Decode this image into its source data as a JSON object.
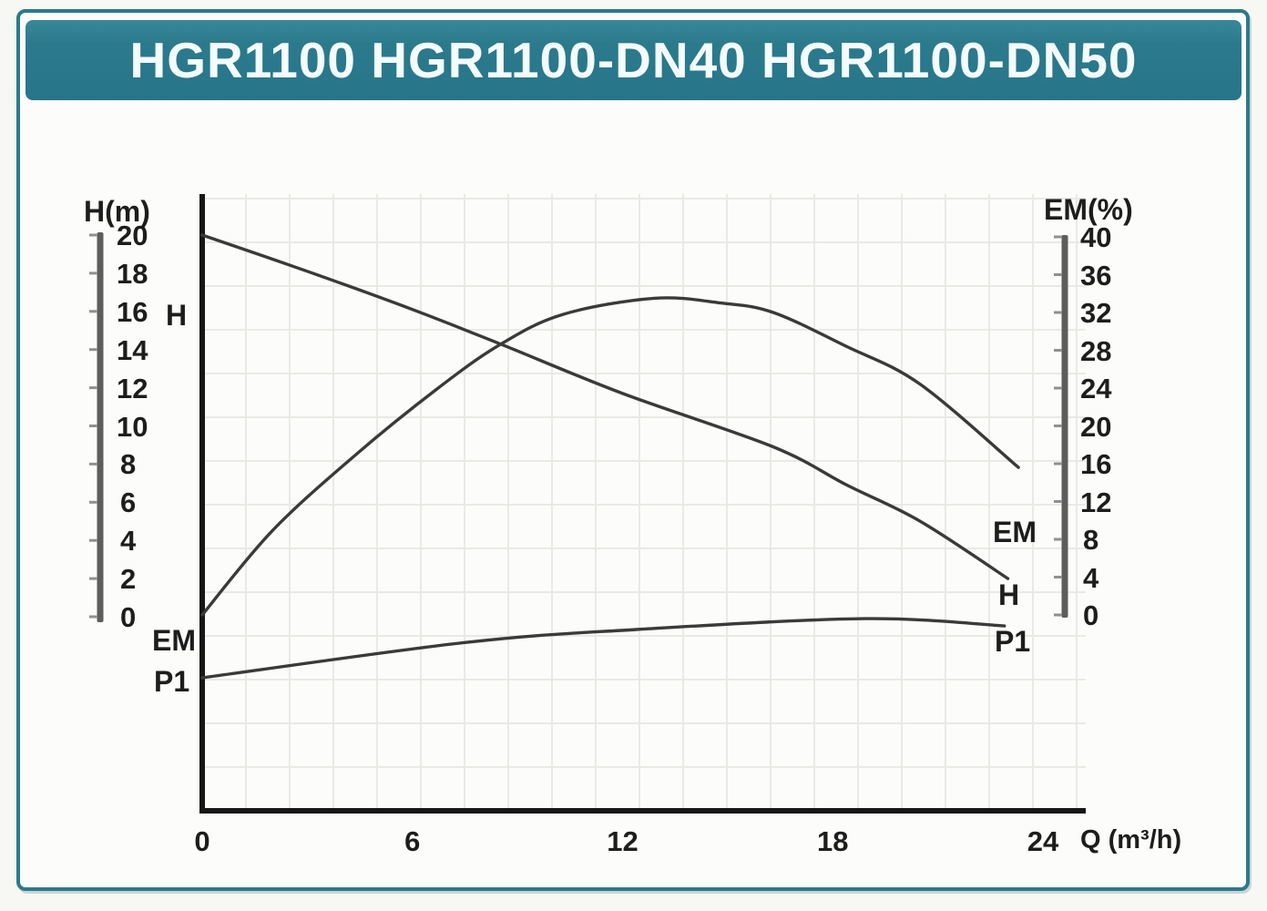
{
  "header": {
    "title": "HGR1100 HGR1100-DN40 HGR1100-DN50"
  },
  "colors": {
    "teal": "#2b7a8c",
    "curve": "#3a3a3a",
    "axis": "#171717",
    "scalebar": "#5d5d5d",
    "scalebar_tick": "#909090",
    "grid": "#e9e9e6",
    "text": "#1d1d1d"
  },
  "left_axis": {
    "title": "H(m)",
    "ticks": [
      20,
      18,
      16,
      14,
      12,
      10,
      8,
      6,
      4,
      2,
      0
    ]
  },
  "right_axis": {
    "title": "EM(%)",
    "ticks": [
      40,
      36,
      32,
      28,
      24,
      20,
      16,
      12,
      8,
      4,
      0
    ]
  },
  "x_axis": {
    "title": "Q (m³/h)",
    "ticks": [
      0,
      6,
      12,
      18,
      24
    ]
  },
  "curve_labels": {
    "left_h": "H",
    "left_em": "EM",
    "left_p1": "P1",
    "right_em": "EM",
    "right_h": "H",
    "right_p1": "P1"
  },
  "chart_data": {
    "type": "line",
    "title": "HGR1100 HGR1100-DN40 HGR1100-DN50",
    "xlabel": "Q (m³/h)",
    "xlim": [
      0,
      24
    ],
    "left_ylabel": "H(m)",
    "left_ylim": [
      0,
      20
    ],
    "right_ylabel": "EM(%)",
    "right_ylim": [
      0,
      40
    ],
    "grid": true,
    "legend_position": "inline-curve-labels",
    "series": [
      {
        "name": "H",
        "axis": "left",
        "points": [
          [
            0,
            20.0
          ],
          [
            3,
            18.1
          ],
          [
            6,
            16.1
          ],
          [
            8.5,
            14.3
          ],
          [
            12,
            11.7
          ],
          [
            16.3,
            8.9
          ],
          [
            18.4,
            6.9
          ],
          [
            20.5,
            5.0
          ],
          [
            23,
            2.0
          ]
        ]
      },
      {
        "name": "EM",
        "axis": "right",
        "points": [
          [
            0,
            0
          ],
          [
            2,
            8.9
          ],
          [
            4.4,
            17.0
          ],
          [
            6.7,
            23.9
          ],
          [
            8.5,
            28.6
          ],
          [
            10.3,
            31.8
          ],
          [
            12.9,
            33.5
          ],
          [
            14.8,
            33.0
          ],
          [
            16.3,
            32.0
          ],
          [
            18.4,
            28.4
          ],
          [
            20.5,
            24.4
          ],
          [
            23.3,
            15.6
          ]
        ]
      },
      {
        "name": "P1",
        "axis": "left",
        "note": "power curve drawn below the zero baseline; no numeric scale shown",
        "points": [
          [
            0,
            -3.2
          ],
          [
            7.5,
            -1.35
          ],
          [
            12.4,
            -0.67
          ],
          [
            18.9,
            -0.1
          ],
          [
            22.9,
            -0.48
          ]
        ]
      }
    ]
  }
}
